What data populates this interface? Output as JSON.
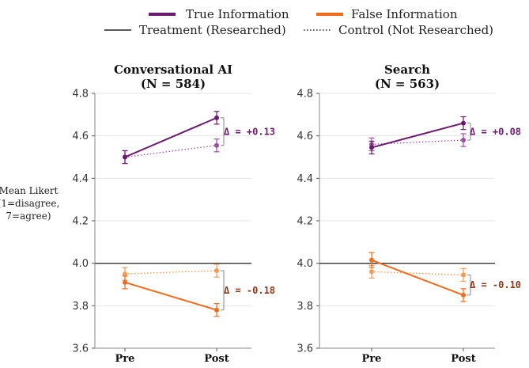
{
  "legend": {
    "true_info": "True Information",
    "false_info": "False Information",
    "treatment": "Treatment (Researched)",
    "control": "Control (Not Researched)"
  },
  "colors": {
    "true_info": "#6a1b6e",
    "true_info_light": "#9c4fa0",
    "false_info": "#f26a1b",
    "false_info_light": "#f59a57",
    "delta_true": "#6a1b6e",
    "delta_false": "#8b3a1a",
    "baseline": "#333333"
  },
  "ylabel_lines": [
    "Mean Likert",
    "(1=disagree,",
    "7=agree)"
  ],
  "chart_data": [
    {
      "type": "line",
      "title_lines": [
        "Conversational AI",
        "(N = 584)"
      ],
      "categories": [
        "Pre",
        "Post"
      ],
      "ylim": [
        3.6,
        4.8
      ],
      "yticks": [
        "3.6",
        "3.8",
        "4.0",
        "4.2",
        "4.4",
        "4.6",
        "4.8"
      ],
      "reference_line": 4.0,
      "series": [
        {
          "name": "True Information – Treatment (Researched)",
          "group": "true",
          "style": "solid",
          "values": [
            4.5,
            4.685
          ],
          "err": [
            0.03,
            0.03
          ]
        },
        {
          "name": "True Information – Control (Not Researched)",
          "group": "true",
          "style": "dotted",
          "values": [
            4.5,
            4.555
          ],
          "err": [
            0.03,
            0.03
          ]
        },
        {
          "name": "False Information – Treatment (Researched)",
          "group": "false",
          "style": "solid",
          "values": [
            3.91,
            3.78
          ],
          "err": [
            0.03,
            0.03
          ]
        },
        {
          "name": "False Information – Control (Not Researched)",
          "group": "false",
          "style": "dotted",
          "values": [
            3.95,
            3.965
          ],
          "err": [
            0.03,
            0.03
          ]
        }
      ],
      "deltas": [
        {
          "group": "true",
          "label": "Δ = +0.13",
          "from": 4.555,
          "to": 4.685
        },
        {
          "group": "false",
          "label": "Δ = -0.18",
          "from": 3.965,
          "to": 3.78
        }
      ]
    },
    {
      "type": "line",
      "title_lines": [
        "Search",
        "(N = 563)"
      ],
      "categories": [
        "Pre",
        "Post"
      ],
      "ylim": [
        3.6,
        4.8
      ],
      "yticks": [
        "3.6",
        "3.8",
        "4.0",
        "4.2",
        "4.4",
        "4.6",
        "4.8"
      ],
      "reference_line": 4.0,
      "series": [
        {
          "name": "True Information – Treatment (Researched)",
          "group": "true",
          "style": "solid",
          "values": [
            4.545,
            4.66
          ],
          "err": [
            0.03,
            0.03
          ]
        },
        {
          "name": "True Information – Control (Not Researched)",
          "group": "true",
          "style": "dotted",
          "values": [
            4.56,
            4.58
          ],
          "err": [
            0.03,
            0.03
          ]
        },
        {
          "name": "False Information – Treatment (Researched)",
          "group": "false",
          "style": "solid",
          "values": [
            4.015,
            3.85
          ],
          "err": [
            0.035,
            0.03
          ]
        },
        {
          "name": "False Information – Control (Not Researched)",
          "group": "false",
          "style": "dotted",
          "values": [
            3.96,
            3.945
          ],
          "err": [
            0.03,
            0.03
          ]
        }
      ],
      "deltas": [
        {
          "group": "true",
          "label": "Δ = +0.08",
          "from": 4.58,
          "to": 4.66
        },
        {
          "group": "false",
          "label": "Δ = -0.10",
          "from": 3.945,
          "to": 3.85
        }
      ]
    }
  ]
}
